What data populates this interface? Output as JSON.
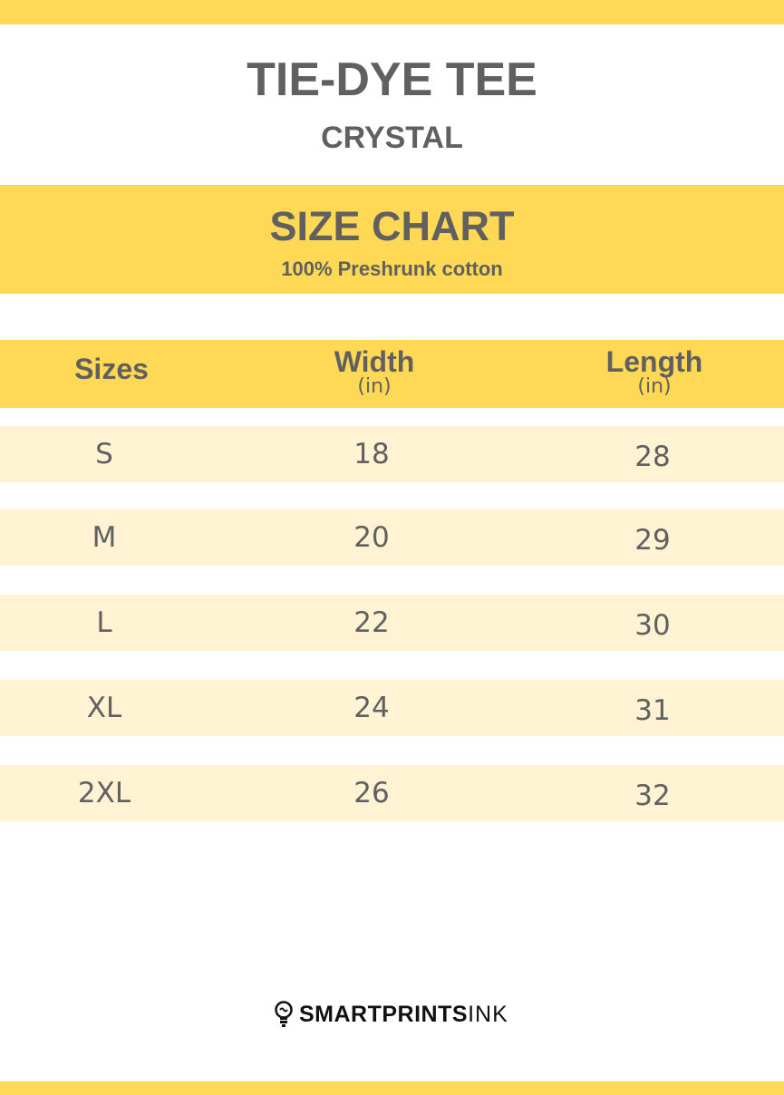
{
  "colors": {
    "accent": "#FFD955",
    "row": "#FFF3D4",
    "text": "#606060"
  },
  "header": {
    "title": "TIE-DYE TEE",
    "subtitle": "CRYSTAL"
  },
  "band": {
    "title": "SIZE CHART",
    "subtitle": "100% Preshrunk cotton"
  },
  "table": {
    "columns": [
      {
        "label": "Sizes",
        "unit": ""
      },
      {
        "label": "Width",
        "unit": "(in)"
      },
      {
        "label": "Length",
        "unit": "(in)"
      }
    ],
    "rows": [
      [
        "S",
        "18",
        "28"
      ],
      [
        "M",
        "20",
        "29"
      ],
      [
        "L",
        "22",
        "30"
      ],
      [
        "XL",
        "24",
        "31"
      ],
      [
        "2XL",
        "26",
        "32"
      ]
    ]
  },
  "logo": {
    "bold": "SMARTPRINTS",
    "light": "INK",
    "icon": "lightbulb-icon"
  }
}
